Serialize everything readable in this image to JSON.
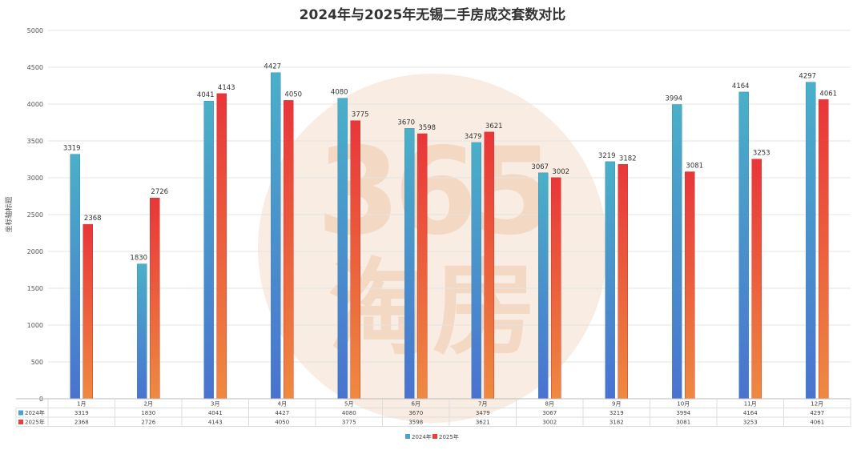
{
  "watermark": {
    "number": "365",
    "text": "淘房"
  },
  "chart_data": {
    "type": "bar",
    "title": "2024年与2025年无锡二手房成交套数对比",
    "ylabel": "坐标轴标题",
    "xlabel": "",
    "ylim": [
      0,
      5000
    ],
    "yticks": [
      0,
      500,
      1000,
      1500,
      2000,
      2500,
      3000,
      3500,
      4000,
      4500,
      5000
    ],
    "categories": [
      "1月",
      "2月",
      "3月",
      "4月",
      "5月",
      "6月",
      "7月",
      "8月",
      "9月",
      "10月",
      "11月",
      "12月"
    ],
    "series": [
      {
        "name": "2024年",
        "values": [
          3319,
          1830,
          4041,
          4427,
          4080,
          3670,
          3479,
          3067,
          3219,
          3994,
          4164,
          4297
        ],
        "color": "#4aa3c8"
      },
      {
        "name": "2025年",
        "values": [
          2368,
          2726,
          4143,
          4050,
          3775,
          3598,
          3621,
          3002,
          3182,
          3081,
          3253,
          4061
        ],
        "color": "#e8403a"
      }
    ],
    "grid": true,
    "legend": "bottom-center",
    "data_table": true
  }
}
